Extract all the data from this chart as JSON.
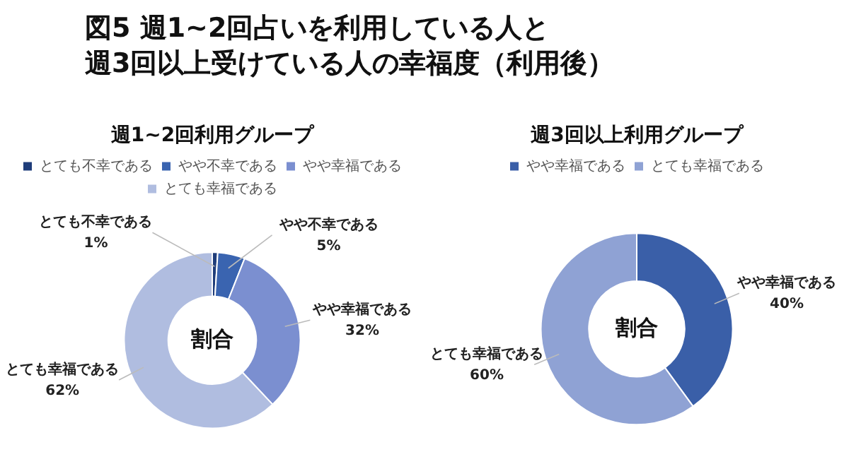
{
  "chart_data": [
    {
      "type": "donut",
      "title": "週1~2回利用グループ",
      "annotations": [
        "図5 週1~2回占いを利用している人と",
        "週3回以上受けている人の幸福度（利用後）",
        "割合"
      ],
      "categories": [
        "とても不幸である",
        "やや不幸である",
        "やや幸福である",
        "とても幸福である"
      ],
      "values": [
        1,
        5,
        32,
        62
      ],
      "value_labels": [
        "1%",
        "5%",
        "32%",
        "62%"
      ],
      "colors": [
        "#1f3d7a",
        "#3a64b0",
        "#7b8fd0",
        "#b0bde0"
      ],
      "legend": "top"
    },
    {
      "type": "donut",
      "title": "週3回以上利用グループ",
      "annotations": [
        "割合"
      ],
      "categories": [
        "やや幸福である",
        "とても幸福である"
      ],
      "values": [
        40,
        60
      ],
      "value_labels": [
        "40%",
        "60%"
      ],
      "colors": [
        "#3a5fa8",
        "#8fa2d4"
      ],
      "legend": "top"
    }
  ]
}
